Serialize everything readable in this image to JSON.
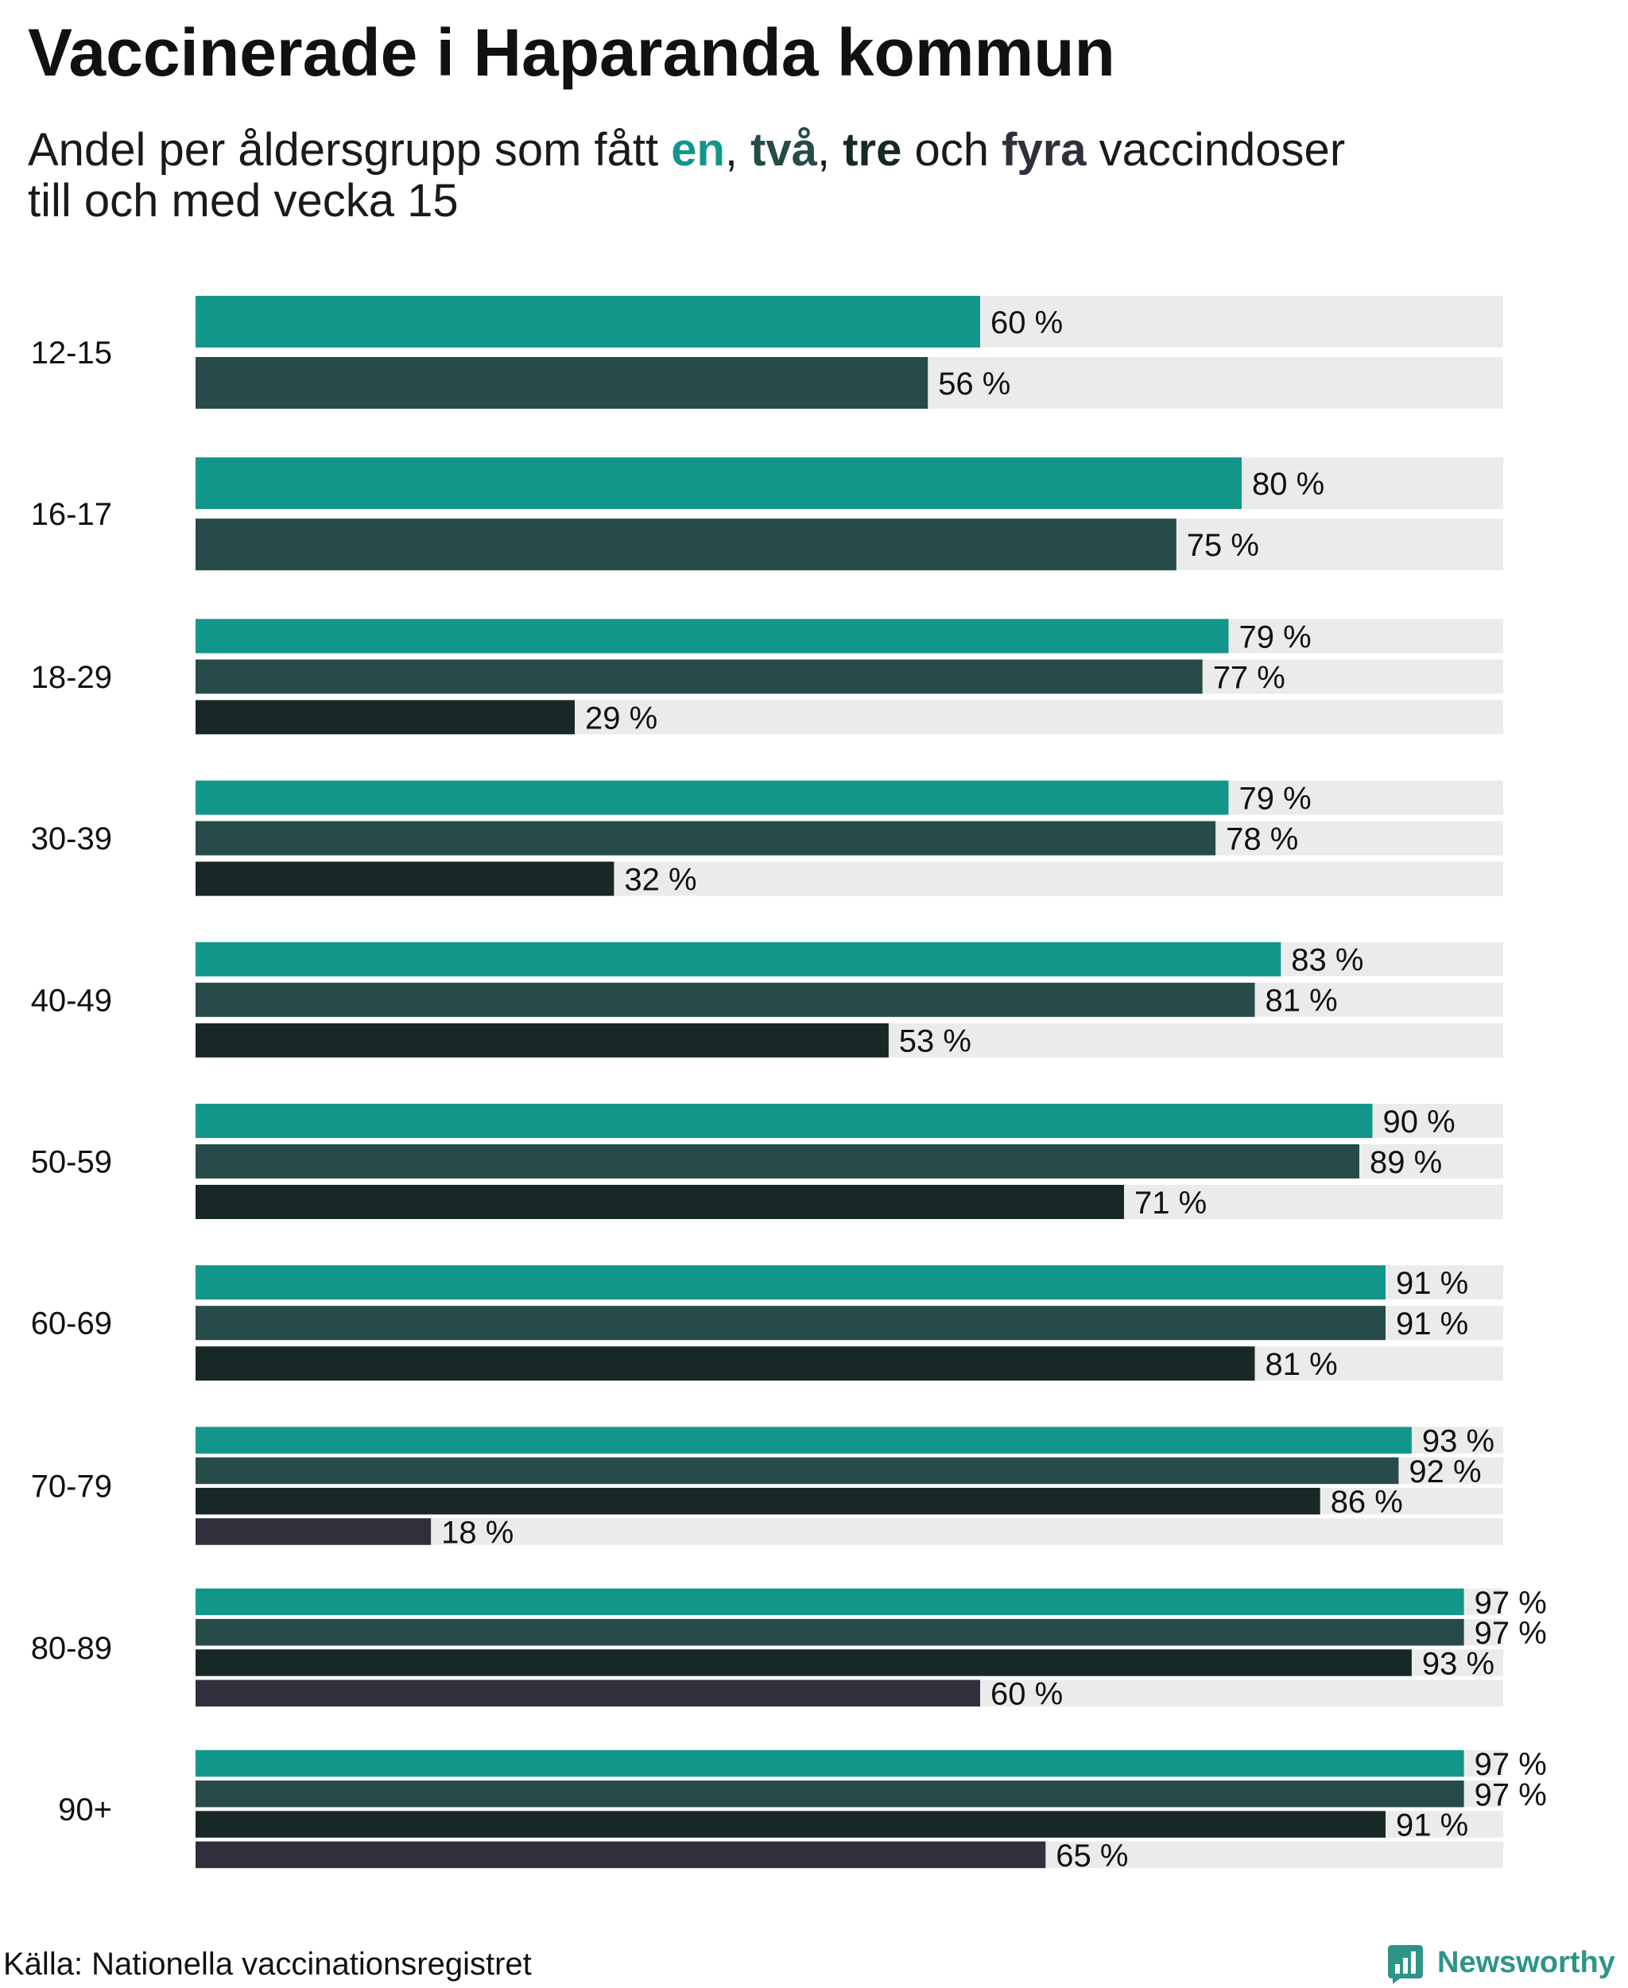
{
  "chart_data": {
    "type": "bar",
    "title": "Vaccinerade i Haparanda kommun",
    "subtitle": {
      "line1_start": "Andel per åldersgrupp som fått ",
      "sep_1": ", ",
      "sep_2": ", ",
      "sep_3": " och ",
      "line1_end": " vaccindoser",
      "line2": "till och med vecka 15"
    },
    "categories": [
      "12-15",
      "16-17",
      "18-29",
      "30-39",
      "40-49",
      "50-59",
      "60-69",
      "70-79",
      "80-89",
      "90+"
    ],
    "xlim": [
      0,
      100
    ],
    "grid": false,
    "series": [
      {
        "name": "en",
        "color": "#13968a",
        "values": [
          60,
          80,
          79,
          79,
          83,
          90,
          91,
          93,
          97,
          97
        ],
        "labels": [
          "60 %",
          "80 %",
          "79 %",
          "79 %",
          "83 %",
          "90 %",
          "91 %",
          "93 %",
          "97 %",
          "97 %"
        ]
      },
      {
        "name": "två",
        "color": "#264b48",
        "values": [
          56,
          75,
          77,
          78,
          81,
          89,
          91,
          92,
          97,
          97
        ],
        "labels": [
          "56 %",
          "75 %",
          "77 %",
          "78 %",
          "81 %",
          "89 %",
          "91 %",
          "92 %",
          "97 %",
          "97 %"
        ]
      },
      {
        "name": "tre",
        "color": "#182826",
        "values": [
          null,
          null,
          29,
          32,
          53,
          71,
          81,
          86,
          93,
          91
        ],
        "labels": [
          null,
          null,
          "29 %",
          "32 %",
          "53 %",
          "71 %",
          "81 %",
          "86 %",
          "93 %",
          "91 %"
        ]
      },
      {
        "name": "fyra",
        "color": "#302f3b",
        "values": [
          null,
          null,
          null,
          null,
          null,
          null,
          null,
          18,
          60,
          65
        ],
        "labels": [
          null,
          null,
          null,
          null,
          null,
          null,
          null,
          "18 %",
          "60 %",
          "65 %"
        ]
      }
    ],
    "source": "Källa: Nationella vaccinationsregistret"
  },
  "branding": {
    "name": "Newsworthy",
    "icon": "newsworthy-logo-icon",
    "color": "#2f9488"
  },
  "colors": {
    "track": "#ebebeb",
    "text": "#111111"
  }
}
